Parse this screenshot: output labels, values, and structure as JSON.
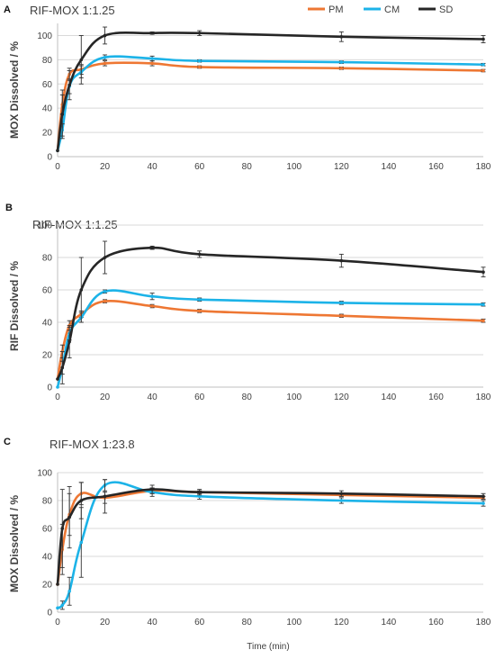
{
  "series_colors": {
    "PM": "#ee7733",
    "CM": "#1cb3e8",
    "SD": "#262626"
  },
  "legend": [
    "PM",
    "CM",
    "SD"
  ],
  "chart_data": [
    {
      "panel": "A",
      "type": "line",
      "title": "RIF-MOX 1:1.25",
      "ylabel": "MOX Dissolved / %",
      "xlabel": "",
      "xlim": [
        0,
        180
      ],
      "ylim": [
        0,
        110
      ],
      "xticks": [
        0,
        20,
        40,
        60,
        80,
        100,
        120,
        140,
        160,
        180
      ],
      "yticks": [
        0,
        20,
        40,
        60,
        80,
        100
      ],
      "grid": "horizontal",
      "x": [
        0,
        2,
        5,
        10,
        20,
        40,
        60,
        120,
        180
      ],
      "series": [
        {
          "name": "PM",
          "values": [
            5,
            43,
            68,
            72,
            77,
            77,
            74,
            73,
            71
          ],
          "errors": [
            0,
            8,
            5,
            4,
            2,
            2,
            1,
            1,
            1
          ]
        },
        {
          "name": "CM",
          "values": [
            5,
            22,
            58,
            70,
            82,
            81,
            79,
            78,
            76
          ],
          "errors": [
            0,
            5,
            6,
            5,
            2,
            2,
            1,
            1,
            1
          ]
        },
        {
          "name": "SD",
          "values": [
            5,
            35,
            59,
            80,
            100,
            102,
            102,
            99,
            97
          ],
          "errors": [
            0,
            20,
            12,
            20,
            7,
            1,
            2,
            4,
            3
          ]
        }
      ]
    },
    {
      "panel": "B",
      "type": "line",
      "title": "RIF-MOX 1:1.25",
      "ylabel": "RIF Dissolved / %",
      "xlabel": "",
      "xlim": [
        0,
        180
      ],
      "ylim": [
        0,
        100
      ],
      "xticks": [
        0,
        20,
        40,
        60,
        80,
        100,
        120,
        140,
        160,
        180
      ],
      "yticks": [
        0,
        20,
        40,
        60,
        80,
        100
      ],
      "grid": "horizontal",
      "x": [
        0,
        2,
        5,
        10,
        20,
        40,
        60,
        120,
        180
      ],
      "series": [
        {
          "name": "PM",
          "values": [
            5,
            22,
            38,
            45,
            53,
            50,
            47,
            44,
            41
          ],
          "errors": [
            0,
            4,
            3,
            2,
            1,
            1,
            1,
            1,
            1
          ]
        },
        {
          "name": "CM",
          "values": [
            0,
            12,
            33,
            43,
            59,
            56,
            54,
            52,
            51
          ],
          "errors": [
            0,
            4,
            4,
            3,
            1,
            2,
            1,
            1,
            1
          ]
        },
        {
          "name": "SD",
          "values": [
            5,
            12,
            28,
            60,
            80,
            86,
            82,
            78,
            71
          ],
          "errors": [
            0,
            10,
            10,
            20,
            10,
            1,
            2,
            4,
            3
          ]
        }
      ]
    },
    {
      "panel": "C",
      "type": "line",
      "title": "RIF-MOX 1:23.8",
      "ylabel": "MOX Dissolved / %",
      "xlabel": "Time (min)",
      "xlim": [
        0,
        180
      ],
      "ylim": [
        0,
        100
      ],
      "xticks": [
        0,
        20,
        40,
        60,
        80,
        100,
        120,
        140,
        160,
        180
      ],
      "yticks": [
        0,
        20,
        40,
        60,
        80,
        100
      ],
      "grid": "horizontal",
      "x": [
        0,
        2,
        5,
        10,
        20,
        40,
        60,
        120,
        180
      ],
      "series": [
        {
          "name": "PM",
          "values": [
            20,
            45,
            70,
            85,
            82,
            87,
            86,
            84,
            82
          ],
          "errors": [
            0,
            18,
            15,
            8,
            4,
            2,
            1,
            1,
            1
          ]
        },
        {
          "name": "CM",
          "values": [
            3,
            5,
            15,
            50,
            91,
            86,
            83,
            80,
            78
          ],
          "errors": [
            0,
            3,
            10,
            25,
            4,
            3,
            2,
            2,
            2
          ]
        },
        {
          "name": "SD",
          "values": [
            20,
            60,
            68,
            80,
            83,
            88,
            86,
            85,
            83
          ],
          "errors": [
            0,
            28,
            22,
            13,
            12,
            3,
            2,
            2,
            2
          ]
        }
      ]
    }
  ]
}
